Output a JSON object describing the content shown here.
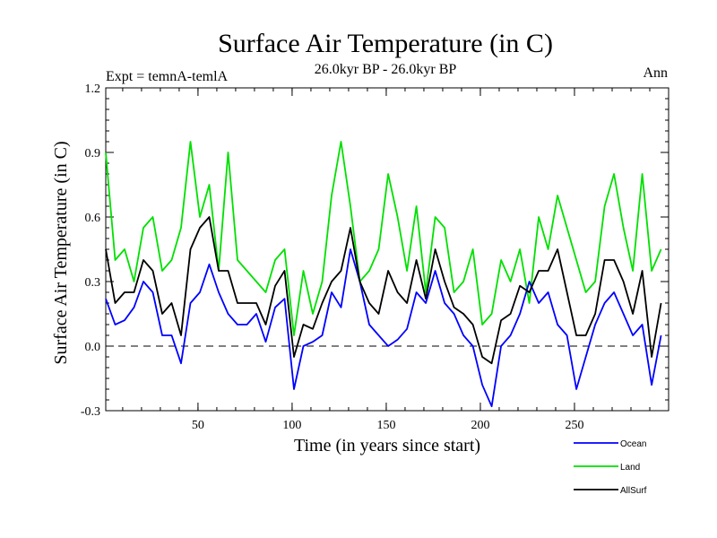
{
  "chart_data": {
    "type": "line",
    "title": "Surface Air Temperature (in C)",
    "subtitle": "26.0kyr BP - 26.0kyr BP",
    "left_label": "Expt = temnA-temlA",
    "right_label": "Ann",
    "xlabel": "Time (in years since start)",
    "ylabel": "Surface Air Temperature (in C)",
    "xlim": [
      1,
      300
    ],
    "ylim": [
      -0.3,
      1.2
    ],
    "x_ticks": [
      50,
      100,
      150,
      200,
      250
    ],
    "x_tick_labels": [
      "50",
      "100",
      "150",
      "200",
      "250"
    ],
    "y_ticks": [
      -0.3,
      0.0,
      0.3,
      0.6,
      0.9,
      1.2
    ],
    "y_tick_labels": [
      "-0.3",
      "0.0",
      "0.3",
      "0.6",
      "0.9",
      "1.2"
    ],
    "reference_line": 0.0,
    "legend_position": "bottom-right",
    "series": [
      {
        "name": "Ocean",
        "color": "#0000ff",
        "x_step": 5,
        "x_start": 1,
        "values": [
          0.22,
          0.1,
          0.12,
          0.18,
          0.3,
          0.25,
          0.05,
          0.05,
          -0.08,
          0.2,
          0.25,
          0.38,
          0.25,
          0.15,
          0.1,
          0.1,
          0.15,
          0.02,
          0.18,
          0.22,
          -0.2,
          0.0,
          0.02,
          0.05,
          0.25,
          0.18,
          0.45,
          0.3,
          0.1,
          0.05,
          0.0,
          0.03,
          0.08,
          0.25,
          0.2,
          0.35,
          0.2,
          0.15,
          0.05,
          0.0,
          -0.18,
          -0.28,
          0.0,
          0.05,
          0.15,
          0.3,
          0.2,
          0.25,
          0.1,
          0.05,
          -0.2,
          -0.05,
          0.1,
          0.2,
          0.25,
          0.15,
          0.05,
          0.1,
          -0.18,
          0.05
        ]
      },
      {
        "name": "Land",
        "color": "#00e000",
        "x_step": 5,
        "x_start": 1,
        "values": [
          0.9,
          0.4,
          0.45,
          0.3,
          0.55,
          0.6,
          0.35,
          0.4,
          0.55,
          0.95,
          0.6,
          0.75,
          0.35,
          0.9,
          0.4,
          0.35,
          0.3,
          0.25,
          0.4,
          0.45,
          0.05,
          0.35,
          0.15,
          0.3,
          0.7,
          0.95,
          0.65,
          0.3,
          0.35,
          0.45,
          0.8,
          0.6,
          0.35,
          0.65,
          0.25,
          0.6,
          0.55,
          0.25,
          0.3,
          0.45,
          0.1,
          0.15,
          0.4,
          0.3,
          0.45,
          0.2,
          0.6,
          0.45,
          0.7,
          0.55,
          0.4,
          0.25,
          0.3,
          0.65,
          0.8,
          0.55,
          0.35,
          0.8,
          0.35,
          0.45
        ]
      },
      {
        "name": "AllSurf",
        "color": "#000000",
        "x_step": 5,
        "x_start": 1,
        "values": [
          0.45,
          0.2,
          0.25,
          0.25,
          0.4,
          0.35,
          0.15,
          0.2,
          0.05,
          0.45,
          0.55,
          0.6,
          0.35,
          0.35,
          0.2,
          0.2,
          0.2,
          0.1,
          0.28,
          0.35,
          -0.05,
          0.1,
          0.08,
          0.2,
          0.3,
          0.35,
          0.55,
          0.3,
          0.2,
          0.15,
          0.35,
          0.25,
          0.2,
          0.4,
          0.22,
          0.45,
          0.3,
          0.18,
          0.15,
          0.1,
          -0.05,
          -0.08,
          0.12,
          0.15,
          0.28,
          0.25,
          0.35,
          0.35,
          0.45,
          0.25,
          0.05,
          0.05,
          0.15,
          0.4,
          0.4,
          0.3,
          0.15,
          0.35,
          -0.05,
          0.2
        ]
      }
    ]
  }
}
